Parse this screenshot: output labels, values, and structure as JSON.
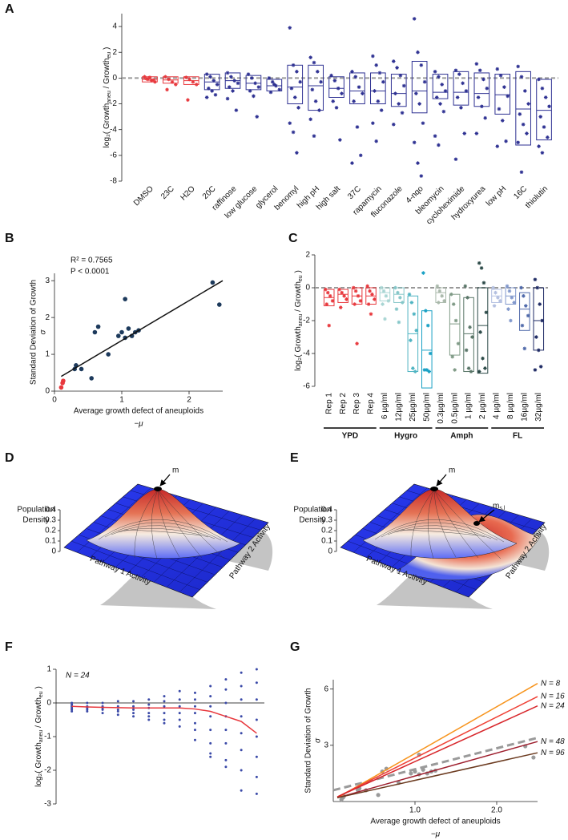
{
  "chart_data": [
    {
      "type": "box",
      "panel": "A",
      "ylabel": [
        "log₂( Growth",
        "aneu",
        " / Growth",
        "eu",
        " )"
      ],
      "ylim": [
        -8,
        5
      ],
      "yticks": [
        -8,
        -6,
        -4,
        -2,
        0,
        2,
        4
      ],
      "refline": 0,
      "refline_dash": true,
      "refline_color": "#999999",
      "groups": [
        {
          "color": "#e8383d",
          "categories": [
            "DMSO",
            "23C",
            "H2O"
          ],
          "boxes": [
            [
              -0.3,
              -0.1,
              0.1
            ],
            [
              -0.4,
              -0.15,
              0.1
            ],
            [
              -0.5,
              -0.2,
              0.1
            ]
          ],
          "points": [
            [
              0.1,
              -0.1,
              -0.2,
              -0.3,
              -0.05,
              0.05,
              -0.15
            ],
            [
              0.1,
              -0.1,
              -0.3,
              -0.5,
              -0.9
            ],
            [
              0.05,
              -0.1,
              -0.3,
              -0.5,
              -1.7
            ]
          ]
        },
        {
          "color": "#2e3192",
          "categories": [
            "20C",
            "raffinose",
            "low glucose",
            "glycerol",
            "benomyl",
            "high pH",
            "high salt",
            "37C",
            "rapamycin",
            "fluconazole",
            "4-nqo",
            "bleomycin",
            "cycloheximide",
            "hydroxyurea",
            "low pH",
            "16C",
            "thiolutin"
          ],
          "boxes": [
            [
              -0.9,
              -0.3,
              0.3
            ],
            [
              -0.8,
              -0.2,
              0.4
            ],
            [
              -0.9,
              -0.4,
              0.2
            ],
            [
              -1.0,
              -0.6,
              -0.1
            ],
            [
              -2.0,
              -0.7,
              1.0
            ],
            [
              -2.5,
              -0.6,
              1.0
            ],
            [
              -1.5,
              -0.8,
              0.1
            ],
            [
              -2.0,
              -1.0,
              0.4
            ],
            [
              -2.0,
              -1.0,
              0.4
            ],
            [
              -2.2,
              -1.2,
              0.3
            ],
            [
              -2.7,
              -1.0,
              1.3
            ],
            [
              -1.6,
              -1.1,
              0.3
            ],
            [
              -2.1,
              -1.1,
              0.5
            ],
            [
              -2.2,
              -1.2,
              0.4
            ],
            [
              -2.8,
              -1.3,
              0.3
            ],
            [
              -5.2,
              -2.4,
              0.5
            ],
            [
              -4.8,
              -2.5,
              -0.1
            ]
          ],
          "points": [
            [
              0.3,
              0.1,
              -0.2,
              -0.5,
              -0.8,
              -1.0,
              -1.3,
              -1.5
            ],
            [
              0.4,
              0.1,
              -0.2,
              -0.4,
              -0.7,
              -1.0,
              -2.5,
              -1.6
            ],
            [
              0.3,
              0,
              -0.4,
              -0.7,
              -1.0,
              -1.4,
              -3.0
            ],
            [
              0,
              -0.3,
              -0.6,
              -0.9,
              -1.1,
              -0.5
            ],
            [
              3.9,
              1.0,
              0.5,
              -0.3,
              -0.8,
              -1.5,
              -2.3,
              -3.5,
              -4.2,
              -5.8
            ],
            [
              1.6,
              1.2,
              0.5,
              -0.3,
              -0.9,
              -1.8,
              -2.5,
              -3.2,
              -4.5
            ],
            [
              0.2,
              -0.2,
              -0.8,
              -1.2,
              -1.8,
              -2.3,
              -4.8
            ],
            [
              0.5,
              0.1,
              -0.7,
              -1.2,
              -1.8,
              -3.8,
              -6.0,
              -6.6
            ],
            [
              1.7,
              1.0,
              0.4,
              -0.3,
              -1.0,
              -1.8,
              -2.5,
              -3.5,
              -4.9
            ],
            [
              1.3,
              0.8,
              0.2,
              -0.6,
              -1.2,
              -2.0,
              -2.7,
              -3.6
            ],
            [
              4.6,
              2.0,
              1.0,
              -0.3,
              -1.2,
              -2.0,
              -3.5,
              -5.0,
              -6.6,
              -7.6
            ],
            [
              0.5,
              0.1,
              -0.5,
              -1.0,
              -1.5,
              -2.0,
              -2.6,
              -4.5,
              -5.2
            ],
            [
              0.6,
              0.3,
              -0.4,
              -1.0,
              -1.5,
              -2.3,
              -4.3,
              -6.3
            ],
            [
              1.1,
              0.6,
              -0.1,
              -0.8,
              -1.5,
              -2.2,
              -3.1,
              -4.3
            ],
            [
              0.7,
              0.2,
              -0.7,
              -1.4,
              -2.4,
              -3.3,
              -4.9,
              -5.3
            ],
            [
              0.9,
              0.1,
              -1.0,
              -2.0,
              -2.8,
              -3.6,
              -4.3,
              -5.0,
              -7.3
            ],
            [
              -0.1,
              -0.8,
              -1.5,
              -2.2,
              -3.0,
              -3.8,
              -4.6,
              -5.3,
              -5.8
            ]
          ]
        }
      ]
    },
    {
      "type": "scatter",
      "panel": "B",
      "ylabel": "Standard Deviation of Growth",
      "ysymbol": "σ",
      "xlabel": "Average growth defect of aneuploids",
      "xsymbol": "−μ",
      "annotations": [
        "R² = 0.7565",
        "P < 0.0001"
      ],
      "xlim": [
        0,
        2.5
      ],
      "xticks": [
        0,
        1,
        2
      ],
      "ylim": [
        0,
        3.2
      ],
      "yticks": [
        0,
        1,
        2,
        3
      ],
      "series": [
        {
          "color": "#e8383d",
          "x": [
            0.1,
            0.12,
            0.13
          ],
          "y": [
            0.1,
            0.22,
            0.28
          ]
        },
        {
          "color": "#1d3a5c",
          "x": [
            0.3,
            0.32,
            0.4,
            0.55,
            0.6,
            0.65,
            0.8,
            0.95,
            1.0,
            1.05,
            1.05,
            1.1,
            1.15,
            1.2,
            1.25,
            2.35,
            2.45
          ],
          "y": [
            0.6,
            0.7,
            0.6,
            0.35,
            1.6,
            1.75,
            1.0,
            1.5,
            1.6,
            1.45,
            2.5,
            1.7,
            1.5,
            1.6,
            1.65,
            2.95,
            2.35
          ]
        }
      ],
      "fit": {
        "color": "#111111",
        "x": [
          0.1,
          2.5
        ],
        "y": [
          0.4,
          3.0
        ]
      }
    },
    {
      "type": "box",
      "panel": "C",
      "ylabel": [
        "log₂( Growth",
        "aneu",
        " / Growth",
        "eu",
        " )"
      ],
      "ylim": [
        -6,
        2
      ],
      "yticks": [
        -6,
        -4,
        -2,
        0,
        2
      ],
      "refline": 0,
      "refline_dash": true,
      "refline_color": "#999999",
      "groups": [
        {
          "name": "YPD",
          "colors": [
            "#e8383d",
            "#e8383d",
            "#e8383d",
            "#e8383d"
          ],
          "categories": [
            "Rep 1",
            "Rep 2",
            "Rep 3",
            "Rep 4"
          ],
          "boxes": [
            [
              -1.1,
              -0.6,
              -0.1
            ],
            [
              -0.9,
              -0.4,
              -0.1
            ],
            [
              -1.0,
              -0.5,
              0
            ],
            [
              -1.0,
              -0.5,
              0
            ]
          ],
          "points": [
            [
              -0.1,
              -0.3,
              -0.5,
              -0.8,
              -1.0,
              -2.3
            ],
            [
              -0.1,
              -0.3,
              -0.5,
              -0.7,
              -1.2
            ],
            [
              0,
              -0.2,
              -0.5,
              -0.8,
              -1.0,
              -3.4
            ],
            [
              0.1,
              -0.2,
              -0.4,
              -0.7,
              -1.0,
              -1.6
            ]
          ]
        },
        {
          "name": "Hygro",
          "colors": [
            "#a8d5d3",
            "#84c6c8",
            "#4fb4c2",
            "#18a0c4"
          ],
          "categories": [
            "6 µg/ml",
            "12µg/ml",
            "25µg/ml",
            "50µg/ml"
          ],
          "boxes": [
            [
              -0.8,
              -0.3,
              0
            ],
            [
              -0.9,
              -0.4,
              0
            ],
            [
              -5.1,
              -2.8,
              -0.5
            ],
            [
              -6.1,
              -3.8,
              -1.4
            ]
          ],
          "points": [
            [
              0,
              -0.2,
              -0.5,
              -0.8,
              -1.0,
              -1.9
            ],
            [
              0,
              -0.3,
              -0.6,
              -0.9,
              -1.3,
              -2.1
            ],
            [
              -0.4,
              -0.9,
              -1.6,
              -2.6,
              -3.2,
              -4.9,
              -5.1
            ],
            [
              0.9,
              -1.4,
              -2.3,
              -4.0,
              -5.0,
              -5.0,
              -5.1
            ]
          ]
        },
        {
          "name": "Amph",
          "colors": [
            "#a9b8aa",
            "#7f9a86",
            "#587567",
            "#2c4a48"
          ],
          "categories": [
            "0.3µg/ml",
            "0.5µg/ml",
            "1  µg/ml",
            "2  µg/ml"
          ],
          "boxes": [
            [
              -0.9,
              -0.3,
              0
            ],
            [
              -4.1,
              -2.2,
              -0.4
            ],
            [
              -5.1,
              -2.8,
              -0.6
            ],
            [
              -5.2,
              -2.3,
              0
            ]
          ],
          "points": [
            [
              0.1,
              -0.2,
              -0.5,
              -0.8,
              -0.9
            ],
            [
              -0.4,
              -1.0,
              -2.0,
              -3.4,
              -4.2,
              -5.0
            ],
            [
              0.1,
              -0.6,
              -2.4,
              -3.0,
              -3.8,
              -4.9,
              -5.1
            ],
            [
              1.5,
              1.2,
              0.3,
              -1.5,
              -2.7,
              -4.3,
              -4.9,
              -5.1
            ]
          ]
        },
        {
          "name": "FL",
          "colors": [
            "#b3bfe0",
            "#8198cc",
            "#4f69aa",
            "#1e2a64"
          ],
          "categories": [
            "4 µg/ml",
            "8 µg/ml",
            "16µg/ml",
            "32µg/ml"
          ],
          "boxes": [
            [
              -0.9,
              -0.5,
              -0.1
            ],
            [
              -1.0,
              -0.5,
              0
            ],
            [
              -2.6,
              -1.3,
              -0.3
            ],
            [
              -3.8,
              -2.0,
              0
            ]
          ],
          "points": [
            [
              0,
              -0.3,
              -0.6,
              -0.8,
              -1.1
            ],
            [
              0.1,
              -0.2,
              -0.6,
              -0.9,
              -1.3,
              -2.0
            ],
            [
              0,
              -0.5,
              -1.1,
              -1.7,
              -2.3,
              -3.7
            ],
            [
              0.5,
              0,
              -1.0,
              -2.0,
              -3.0,
              -3.8,
              -4.8,
              -5.0
            ]
          ]
        }
      ]
    },
    {
      "type": "surface",
      "panel": "D",
      "zlabel": [
        "Population",
        "Density"
      ],
      "zticks": [
        0,
        0.1,
        0.2,
        0.3,
        0.4
      ],
      "xlabel": "Pathway 1 Activity",
      "ylabel": "Pathway 2 Activity",
      "annotations": [
        {
          "text": "m"
        }
      ]
    },
    {
      "type": "surface",
      "panel": "E",
      "zlabel": [
        "Population",
        "Density"
      ],
      "zticks": [
        0,
        0.1,
        0.2,
        0.3,
        0.4
      ],
      "xlabel": "Pathway 1 Activity",
      "ylabel": "Pathway 2 Activity",
      "annotations": [
        {
          "text": "m"
        },
        {
          "text": "m",
          "subscript": "s,l"
        }
      ]
    },
    {
      "type": "strip",
      "panel": "F",
      "ylabel": [
        "log₂( Growth",
        "aneu",
        " / Growth",
        "eu",
        " )"
      ],
      "annotation": "N = 24",
      "ylim": [
        -3,
        1
      ],
      "yticks": [
        -3,
        -2,
        -1,
        0,
        1
      ],
      "refline": 0,
      "refline_dash": false,
      "refline_color": "#000000",
      "color": "#3b4aa8",
      "line_color": "#e8383d",
      "categories": [
        null,
        null,
        null,
        null,
        null,
        null,
        null,
        null,
        null,
        null,
        null,
        null,
        null
      ],
      "points": [
        [
          0,
          -0.05,
          -0.1,
          -0.15,
          -0.2,
          -0.25
        ],
        [
          0,
          -0.1,
          -0.15,
          -0.2,
          -0.25
        ],
        [
          0,
          -0.1,
          -0.15,
          -0.2,
          -0.3
        ],
        [
          0.05,
          -0.1,
          -0.2,
          -0.25,
          -0.35
        ],
        [
          0.05,
          -0.1,
          -0.2,
          -0.3,
          -0.4
        ],
        [
          0.1,
          -0.05,
          -0.15,
          -0.3,
          -0.4,
          -0.5
        ],
        [
          0.2,
          0.05,
          -0.1,
          -0.3,
          -0.5,
          -0.6
        ],
        [
          0.35,
          0.1,
          -0.1,
          -0.3,
          -0.5,
          -0.7
        ],
        [
          0.3,
          0.1,
          -0.1,
          -0.3,
          -0.6,
          -0.8,
          -1.1
        ],
        [
          0.5,
          0.2,
          -0.1,
          -0.4,
          -0.8,
          -1.2,
          -1.5,
          -1.6
        ],
        [
          0.7,
          0.4,
          0,
          -0.4,
          -0.8,
          -1.2,
          -1.7,
          -1.9
        ],
        [
          0.9,
          0.5,
          0.1,
          -0.4,
          -0.9,
          -1.4,
          -2.0,
          -2.6
        ],
        [
          1.0,
          0.6,
          0.1,
          -0.5,
          -1.0,
          -1.6,
          -2.2,
          -2.7
        ]
      ],
      "line": [
        -0.1,
        -0.12,
        -0.13,
        -0.14,
        -0.15,
        -0.15,
        -0.15,
        -0.15,
        -0.18,
        -0.25,
        -0.4,
        -0.55,
        -0.9
      ]
    },
    {
      "type": "line",
      "panel": "G",
      "ylabel": "Standard Deviation of Growth",
      "ysymbol": "σ",
      "xlabel": "Average growth defect of aneuploids",
      "xsymbol": "−μ",
      "xlim": [
        0,
        2.5
      ],
      "xticks": [
        {
          "value": 1,
          "label": "1.0"
        },
        {
          "value": 2,
          "label": "2.0"
        }
      ],
      "ylim": [
        0,
        6.5
      ],
      "yticks": [
        3,
        6
      ],
      "series": [
        {
          "name": "N = 8",
          "color": "#f7941d",
          "x": [
            0.05,
            2.5
          ],
          "y": [
            0.2,
            6.3
          ]
        },
        {
          "name": "N = 16",
          "color": "#ef4136",
          "x": [
            0.05,
            2.5
          ],
          "y": [
            0.25,
            5.6
          ]
        },
        {
          "name": "N = 24",
          "color": "#d7262b",
          "x": [
            0.05,
            2.5
          ],
          "y": [
            0.25,
            5.1
          ]
        },
        {
          "name": "N = 48",
          "color": "#9e1f2e",
          "x": [
            0.05,
            2.5
          ],
          "y": [
            0.2,
            3.2
          ]
        },
        {
          "name": "N = 96",
          "color": "#6b3a1f",
          "x": [
            0.05,
            2.5
          ],
          "y": [
            0.2,
            2.6
          ]
        }
      ],
      "fit": {
        "color": "#9a9a9a",
        "dashed": true,
        "x": [
          0,
          2.5
        ],
        "y": [
          0.6,
          3.4
        ]
      },
      "points": {
        "color": "#9a9a9a",
        "x": [
          0.1,
          0.12,
          0.13,
          0.3,
          0.32,
          0.4,
          0.55,
          0.6,
          0.65,
          0.8,
          0.95,
          1.0,
          1.05,
          1.05,
          1.1,
          1.15,
          1.2,
          1.25,
          2.35,
          2.45
        ],
        "y": [
          0.1,
          0.22,
          0.28,
          0.6,
          0.7,
          0.6,
          0.35,
          1.6,
          1.75,
          1.0,
          1.5,
          1.6,
          1.45,
          2.5,
          1.7,
          1.5,
          1.6,
          1.65,
          2.95,
          2.35
        ]
      }
    }
  ]
}
